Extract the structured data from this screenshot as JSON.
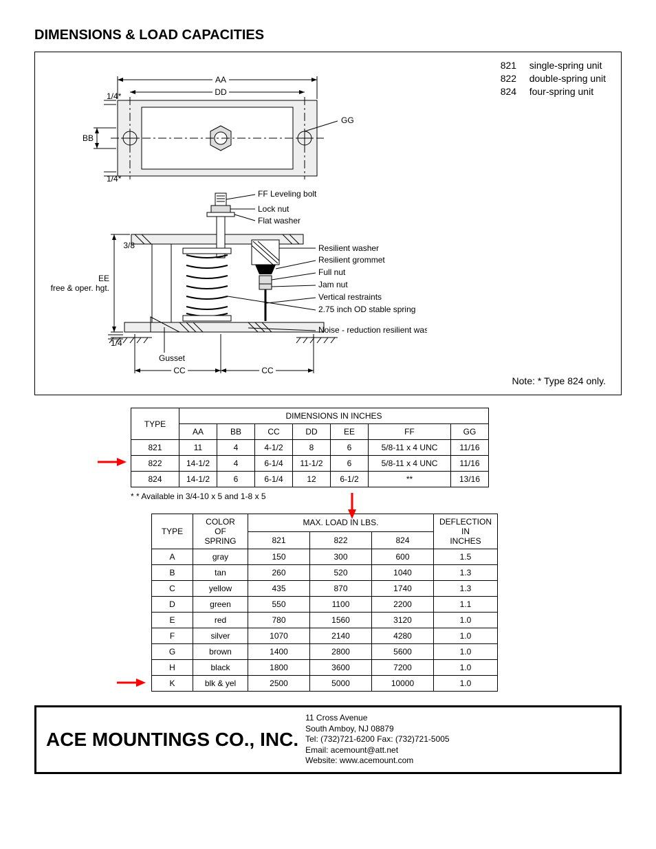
{
  "heading": "DIMENSIONS & LOAD CAPACITIES",
  "legend": [
    {
      "num": "821",
      "desc": "single-spring unit"
    },
    {
      "num": "822",
      "desc": "double-spring unit"
    },
    {
      "num": "824",
      "desc": "four-spring unit"
    }
  ],
  "note": "Note:  *  Type 824 only.",
  "diagram": {
    "dims": {
      "AA": "AA",
      "BB": "BB",
      "CC": "CC",
      "DD": "DD",
      "EE": "EE",
      "GG": "GG"
    },
    "small_dims": {
      "q1": "1/4",
      "q2": "1/4",
      "q3": "3/8",
      "q4": "1/4",
      "star": "*"
    },
    "ee_sub": "free & oper. hgt.",
    "parts": {
      "ff": "FF Leveling bolt",
      "lock": "Lock nut",
      "flat": "Flat washer",
      "rwasher": "Resilient washer",
      "rgrommet": "Resilient grommet",
      "fullnut": "Full nut",
      "jamnut": "Jam nut",
      "vrest": "Vertical restraints",
      "spring": "2.75 inch OD stable spring",
      "noise": "Noise - reduction resilient washer",
      "gusset": "Gusset"
    }
  },
  "table1": {
    "type_hdr": "TYPE",
    "group_hdr": "DIMENSIONS IN INCHES",
    "cols": [
      "AA",
      "BB",
      "CC",
      "DD",
      "EE",
      "FF",
      "GG"
    ],
    "rows": [
      {
        "type": "821",
        "AA": "11",
        "BB": "4",
        "CC": "4-1/2",
        "DD": "8",
        "EE": "6",
        "FF": "5/8-11 x 4 UNC",
        "GG": "11/16"
      },
      {
        "type": "822",
        "AA": "14-1/2",
        "BB": "4",
        "CC": "6-1/4",
        "DD": "11-1/2",
        "EE": "6",
        "FF": "5/8-11 x 4 UNC",
        "GG": "11/16"
      },
      {
        "type": "824",
        "AA": "14-1/2",
        "BB": "6",
        "CC": "6-1/4",
        "DD": "12",
        "EE": "6-1/2",
        "FF": "**",
        "GG": "13/16"
      }
    ],
    "footnote": "* *  Available in 3/4-10 x 5 and 1-8 x 5"
  },
  "table2": {
    "type_hdr": "TYPE",
    "color_hdr": "COLOR OF SPRING",
    "load_hdr": "MAX. LOAD IN LBS.",
    "defl_hdr": "DEFLECTION IN INCHES",
    "load_cols": [
      "821",
      "822",
      "824"
    ],
    "rows": [
      {
        "type": "A",
        "color": "gray",
        "l821": "150",
        "l822": "300",
        "l824": "600",
        "defl": "1.5"
      },
      {
        "type": "B",
        "color": "tan",
        "l821": "260",
        "l822": "520",
        "l824": "1040",
        "defl": "1.3"
      },
      {
        "type": "C",
        "color": "yellow",
        "l821": "435",
        "l822": "870",
        "l824": "1740",
        "defl": "1.3"
      },
      {
        "type": "D",
        "color": "green",
        "l821": "550",
        "l822": "1100",
        "l824": "2200",
        "defl": "1.1"
      },
      {
        "type": "E",
        "color": "red",
        "l821": "780",
        "l822": "1560",
        "l824": "3120",
        "defl": "1.0"
      },
      {
        "type": "F",
        "color": "silver",
        "l821": "1070",
        "l822": "2140",
        "l824": "4280",
        "defl": "1.0"
      },
      {
        "type": "G",
        "color": "brown",
        "l821": "1400",
        "l822": "2800",
        "l824": "5600",
        "defl": "1.0"
      },
      {
        "type": "H",
        "color": "black",
        "l821": "1800",
        "l822": "3600",
        "l824": "7200",
        "defl": "1.0"
      },
      {
        "type": "K",
        "color": "blk & yel",
        "l821": "2500",
        "l822": "5000",
        "l824": "10000",
        "defl": "1.0"
      }
    ],
    "group_breaks": [
      3,
      6
    ]
  },
  "arrows": {
    "color": "#ff0000"
  },
  "footer": {
    "company": "ACE MOUNTINGS CO., INC.",
    "addr1": "11 Cross Avenue",
    "addr2": "South Amboy, NJ 08879",
    "tel": "Tel: (732)721-6200  Fax: (732)721-5005",
    "email": "Email: acemount@att.net",
    "web": "Website: www.acemount.com"
  }
}
